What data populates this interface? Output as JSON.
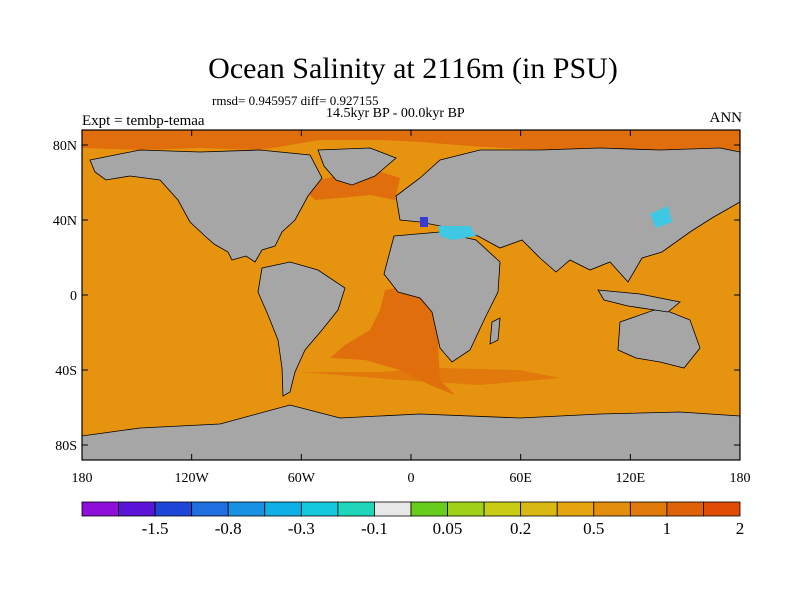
{
  "title": "Ocean Salinity at 2116m (in PSU)",
  "stats": "rmsd= 0.945957 diff= 0.927155",
  "period": "14.5kyr BP - 00.0kyr BP",
  "experiment": "Expt = tembp-temaa",
  "season": "ANN",
  "colors": {
    "land": "#a6a6a6",
    "ocean_main": "#e6940f",
    "ocean_high": "#e06e0c",
    "ocean_negative": "#3ec8e4",
    "ocean_strong_negative": "#3a3ad0"
  },
  "map": {
    "lat_ticks": [
      {
        "value": 80,
        "label": "80N"
      },
      {
        "value": 40,
        "label": "40N"
      },
      {
        "value": 0,
        "label": "0"
      },
      {
        "value": -40,
        "label": "40S"
      },
      {
        "value": -80,
        "label": "80S"
      }
    ],
    "lon_ticks": [
      {
        "value": -180,
        "label": "180"
      },
      {
        "value": -120,
        "label": "120W"
      },
      {
        "value": -60,
        "label": "60W"
      },
      {
        "value": 0,
        "label": "0"
      },
      {
        "value": 60,
        "label": "60E"
      },
      {
        "value": 120,
        "label": "120E"
      },
      {
        "value": 180,
        "label": "180"
      }
    ]
  },
  "colorbar": {
    "colors": [
      "#8f0ed8",
      "#5a14d6",
      "#1e46d8",
      "#1f6fe0",
      "#1893e4",
      "#10b0e6",
      "#15c8dd",
      "#20d6b8",
      "#e8e8e8",
      "#68cc1c",
      "#a0d018",
      "#c8cc14",
      "#d8b812",
      "#e6a40f",
      "#e38e0d",
      "#e07a0b",
      "#de6208",
      "#e04b06"
    ],
    "labels": [
      {
        "after_box": 2,
        "text": "-1.5"
      },
      {
        "after_box": 4,
        "text": "-0.8"
      },
      {
        "after_box": 6,
        "text": "-0.3"
      },
      {
        "after_box": 8,
        "text": "-0.1"
      },
      {
        "after_box": 10,
        "text": "0.05"
      },
      {
        "after_box": 12,
        "text": "0.2"
      },
      {
        "after_box": 14,
        "text": "0.5"
      },
      {
        "after_box": 16,
        "text": "1"
      },
      {
        "after_box": 18,
        "text": "2"
      }
    ]
  }
}
